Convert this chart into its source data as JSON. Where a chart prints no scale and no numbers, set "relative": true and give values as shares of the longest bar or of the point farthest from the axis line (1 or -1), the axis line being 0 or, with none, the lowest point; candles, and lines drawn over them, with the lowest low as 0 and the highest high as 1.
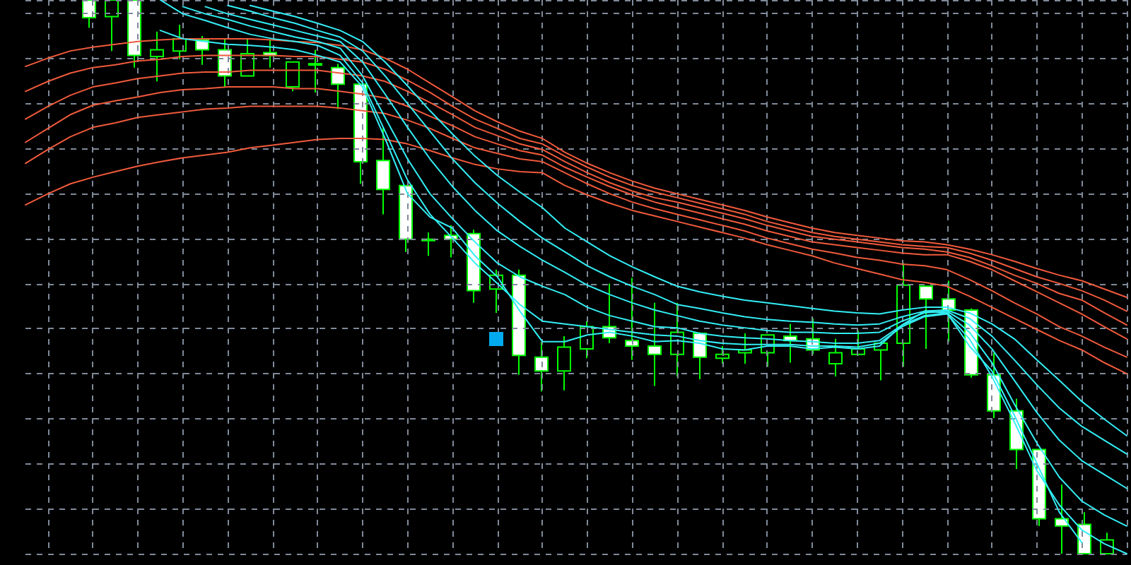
{
  "chart_data": [
    {
      "type": "candlestick",
      "relative": true,
      "color": "#00ff00",
      "categories": [
        null,
        null,
        null,
        null,
        null,
        null,
        null,
        null,
        null,
        null,
        null,
        null,
        null,
        null,
        null,
        null,
        null,
        null,
        null,
        null,
        null,
        null,
        null,
        null,
        null,
        null,
        null,
        null,
        null,
        null,
        null,
        null,
        null,
        null,
        null,
        null,
        null,
        null,
        null,
        null,
        null,
        null,
        null,
        null,
        null,
        null
      ],
      "ohlc": [
        [
          1,
          1,
          0.95,
          0.968
        ],
        [
          0.97,
          1,
          0.908,
          1
        ],
        [
          1,
          1,
          0.878,
          0.9
        ],
        [
          0.898,
          0.943,
          0.853,
          0.91
        ],
        [
          0.908,
          0.955,
          0.893,
          0.93
        ],
        [
          0.928,
          0.935,
          0.883,
          0.91
        ],
        [
          0.91,
          0.93,
          0.843,
          0.863
        ],
        [
          0.863,
          0.93,
          0.863,
          0.903
        ],
        [
          0.905,
          0.928,
          0.878,
          0.9
        ],
        [
          0.843,
          0.888,
          0.835,
          0.888
        ],
        [
          0.885,
          0.91,
          0.833,
          0.883
        ],
        [
          0.878,
          0.885,
          0.803,
          0.848
        ],
        [
          0.848,
          0.848,
          0.668,
          0.708
        ],
        [
          0.71,
          0.77,
          0.613,
          0.658
        ],
        [
          0.665,
          0.665,
          0.545,
          0.568
        ],
        [
          0.568,
          0.58,
          0.538,
          0.568
        ],
        [
          0.575,
          0.593,
          0.535,
          0.568
        ],
        [
          0.578,
          0.585,
          0.453,
          0.475
        ],
        [
          0.478,
          0.513,
          0.435,
          0.503
        ],
        [
          0.503,
          0.513,
          0.323,
          0.358
        ],
        [
          0.355,
          0.383,
          0.293,
          0.33
        ],
        [
          0.33,
          0.393,
          0.295,
          0.373
        ],
        [
          0.37,
          0.42,
          0.353,
          0.41
        ],
        [
          0.41,
          0.488,
          0.38,
          0.39
        ],
        [
          0.385,
          0.498,
          0.35,
          0.375
        ],
        [
          0.375,
          0.453,
          0.303,
          0.36
        ],
        [
          0.36,
          0.453,
          0.32,
          0.4
        ],
        [
          0.398,
          0.4,
          0.315,
          0.355
        ],
        [
          0.353,
          0.375,
          0.343,
          0.36
        ],
        [
          0.363,
          0.398,
          0.343,
          0.368
        ],
        [
          0.363,
          0.395,
          0.338,
          0.395
        ],
        [
          0.393,
          0.415,
          0.345,
          0.385
        ],
        [
          0.388,
          0.425,
          0.36,
          0.368
        ],
        [
          0.343,
          0.388,
          0.32,
          0.363
        ],
        [
          0.36,
          0.403,
          0.358,
          0.37
        ],
        [
          0.368,
          0.38,
          0.313,
          0.38
        ],
        [
          0.38,
          0.525,
          0.338,
          0.485
        ],
        [
          0.483,
          0.483,
          0.37,
          0.46
        ],
        [
          0.46,
          0.493,
          0.383,
          0.44
        ],
        [
          0.44,
          0.443,
          0.318,
          0.323
        ],
        [
          0.323,
          0.363,
          0.245,
          0.258
        ],
        [
          0.258,
          0.28,
          0.153,
          0.188
        ],
        [
          0.188,
          0.188,
          0.05,
          0.063
        ],
        [
          0.063,
          0.125,
          0,
          0.05
        ],
        [
          0.053,
          0.075,
          0,
          0
        ],
        [
          0,
          0.038,
          0,
          0.025
        ]
      ]
    },
    {
      "type": "line",
      "relative": true,
      "grid": true,
      "marker": "none",
      "line_style": "solid",
      "categories": [
        null,
        null,
        null,
        null,
        null,
        null,
        null,
        null,
        null,
        null,
        null,
        null,
        null,
        null,
        null,
        null,
        null,
        null,
        null,
        null,
        null,
        null,
        null,
        null,
        null,
        null,
        null,
        null,
        null,
        null,
        null,
        null,
        null,
        null,
        null,
        null,
        null,
        null,
        null,
        null,
        null,
        null,
        null,
        null,
        null,
        null,
        null,
        null,
        null,
        null
      ],
      "series": [
        {
          "color": "#f05a3c",
          "values": [
            0.88,
            0.895,
            0.908,
            0.915,
            0.92,
            0.925,
            0.928,
            0.93,
            0.93,
            0.93,
            0.93,
            0.928,
            0.925,
            0.923,
            0.918,
            0.91,
            0.895,
            0.875,
            0.85,
            0.825,
            0.8,
            0.78,
            0.763,
            0.75,
            0.725,
            0.705,
            0.688,
            0.673,
            0.66,
            0.65,
            0.64,
            0.63,
            0.62,
            0.608,
            0.598,
            0.588,
            0.58,
            0.575,
            0.57,
            0.565,
            0.563,
            0.558,
            0.55,
            0.54,
            0.528,
            0.515,
            0.503,
            0.493,
            0.478,
            0.463
          ]
        },
        {
          "color": "#f05a3c",
          "values": [
            0.835,
            0.853,
            0.868,
            0.878,
            0.883,
            0.89,
            0.893,
            0.898,
            0.9,
            0.9,
            0.9,
            0.9,
            0.898,
            0.898,
            0.893,
            0.888,
            0.875,
            0.855,
            0.833,
            0.808,
            0.785,
            0.768,
            0.75,
            0.74,
            0.718,
            0.698,
            0.68,
            0.665,
            0.653,
            0.643,
            0.633,
            0.623,
            0.613,
            0.6,
            0.59,
            0.58,
            0.573,
            0.568,
            0.563,
            0.558,
            0.555,
            0.553,
            0.543,
            0.53,
            0.515,
            0.5,
            0.488,
            0.475,
            0.458,
            0.438
          ]
        },
        {
          "color": "#f05a3c",
          "values": [
            0.785,
            0.808,
            0.828,
            0.843,
            0.85,
            0.858,
            0.863,
            0.868,
            0.87,
            0.87,
            0.873,
            0.873,
            0.873,
            0.873,
            0.868,
            0.863,
            0.853,
            0.835,
            0.815,
            0.793,
            0.77,
            0.755,
            0.74,
            0.73,
            0.708,
            0.688,
            0.67,
            0.655,
            0.643,
            0.635,
            0.625,
            0.615,
            0.605,
            0.593,
            0.583,
            0.573,
            0.568,
            0.563,
            0.558,
            0.553,
            0.55,
            0.545,
            0.535,
            0.52,
            0.503,
            0.488,
            0.47,
            0.458,
            0.435,
            0.413
          ]
        },
        {
          "color": "#f05a3c",
          "values": [
            0.743,
            0.768,
            0.793,
            0.81,
            0.818,
            0.825,
            0.833,
            0.838,
            0.84,
            0.843,
            0.843,
            0.843,
            0.84,
            0.84,
            0.835,
            0.83,
            0.823,
            0.808,
            0.79,
            0.773,
            0.753,
            0.74,
            0.728,
            0.72,
            0.698,
            0.68,
            0.663,
            0.648,
            0.635,
            0.625,
            0.615,
            0.605,
            0.595,
            0.583,
            0.573,
            0.563,
            0.558,
            0.553,
            0.548,
            0.543,
            0.54,
            0.54,
            0.528,
            0.513,
            0.493,
            0.473,
            0.453,
            0.433,
            0.41,
            0.388
          ]
        },
        {
          "color": "#f05a3c",
          "values": [
            0.705,
            0.73,
            0.753,
            0.77,
            0.778,
            0.788,
            0.793,
            0.798,
            0.803,
            0.805,
            0.808,
            0.808,
            0.808,
            0.808,
            0.805,
            0.8,
            0.795,
            0.783,
            0.768,
            0.75,
            0.733,
            0.723,
            0.713,
            0.708,
            0.688,
            0.668,
            0.65,
            0.635,
            0.623,
            0.613,
            0.603,
            0.593,
            0.583,
            0.57,
            0.56,
            0.55,
            0.543,
            0.535,
            0.53,
            0.523,
            0.52,
            0.513,
            0.495,
            0.475,
            0.453,
            0.433,
            0.41,
            0.393,
            0.373,
            0.355
          ]
        },
        {
          "color": "#f05a3c",
          "values": [
            0.63,
            0.65,
            0.668,
            0.68,
            0.69,
            0.7,
            0.708,
            0.715,
            0.72,
            0.725,
            0.733,
            0.738,
            0.743,
            0.748,
            0.75,
            0.75,
            0.748,
            0.74,
            0.728,
            0.715,
            0.703,
            0.695,
            0.69,
            0.688,
            0.665,
            0.648,
            0.633,
            0.62,
            0.61,
            0.6,
            0.59,
            0.58,
            0.57,
            0.558,
            0.548,
            0.538,
            0.525,
            0.515,
            0.505,
            0.495,
            0.49,
            0.483,
            0.465,
            0.445,
            0.425,
            0.405,
            0.385,
            0.368,
            0.345,
            0.325
          ]
        },
        {
          "color": "#33eef5",
          "values": [
            null,
            null,
            null,
            null,
            null,
            null,
            0.945,
            0.93,
            0.925,
            0.92,
            0.918,
            0.915,
            0.91,
            0.9,
            0.888,
            0.843,
            0.75,
            0.65,
            0.608,
            0.588,
            0.538,
            0.5,
            0.438,
            0.383,
            0.383,
            0.395,
            0.4,
            0.393,
            0.383,
            0.385,
            0.38,
            0.37,
            0.368,
            0.375,
            0.375,
            0.37,
            0.373,
            0.37,
            0.375,
            0.413,
            0.438,
            0.435,
            0.375,
            0.33,
            0.25,
            0.163,
            0.075,
            0.02,
            null,
            null
          ]
        },
        {
          "color": "#33eef5",
          "values": [
            null,
            null,
            null,
            null,
            null,
            null,
            1,
            0.975,
            0.963,
            0.95,
            0.938,
            0.93,
            0.925,
            0.918,
            0.9,
            0.85,
            0.763,
            0.675,
            0.613,
            0.57,
            0.525,
            0.488,
            0.45,
            0.42,
            0.415,
            0.41,
            0.405,
            0.4,
            0.395,
            0.393,
            0.385,
            0.38,
            0.378,
            0.378,
            0.378,
            0.375,
            0.375,
            0.373,
            0.38,
            0.41,
            0.428,
            0.433,
            0.388,
            0.32,
            0.238,
            0.15,
            0.088,
            0.043,
            0.018,
            0
          ]
        },
        {
          "color": "#33eef5",
          "values": [
            null,
            null,
            null,
            null,
            null,
            null,
            null,
            0.988,
            0.975,
            0.965,
            0.953,
            0.943,
            0.933,
            0.925,
            0.913,
            0.863,
            0.788,
            0.713,
            0.65,
            0.605,
            0.563,
            0.525,
            0.5,
            0.483,
            0.468,
            0.445,
            0.43,
            0.42,
            0.41,
            0.408,
            0.398,
            0.393,
            0.39,
            0.388,
            0.385,
            0.383,
            0.38,
            0.38,
            0.385,
            0.413,
            0.43,
            0.435,
            0.4,
            0.345,
            0.27,
            0.2,
            0.138,
            0.095,
            0.07,
            0.05
          ]
        },
        {
          "color": "#33eef5",
          "values": [
            null,
            null,
            null,
            null,
            null,
            null,
            null,
            null,
            0.988,
            0.975,
            0.965,
            0.955,
            0.945,
            0.935,
            0.925,
            0.888,
            0.83,
            0.77,
            0.713,
            0.663,
            0.62,
            0.583,
            0.555,
            0.53,
            0.508,
            0.485,
            0.468,
            0.453,
            0.44,
            0.43,
            0.42,
            0.413,
            0.408,
            0.403,
            0.4,
            0.4,
            0.398,
            0.398,
            0.4,
            0.42,
            0.435,
            0.438,
            0.413,
            0.37,
            0.313,
            0.255,
            0.205,
            0.168,
            0.143,
            0.118
          ]
        },
        {
          "color": "#33eef5",
          "values": [
            null,
            null,
            null,
            null,
            null,
            null,
            null,
            null,
            null,
            0.99,
            0.98,
            0.968,
            0.958,
            0.945,
            0.933,
            0.908,
            0.863,
            0.813,
            0.763,
            0.713,
            0.67,
            0.633,
            0.6,
            0.57,
            0.545,
            0.52,
            0.5,
            0.483,
            0.468,
            0.45,
            0.443,
            0.435,
            0.428,
            0.423,
            0.42,
            0.418,
            0.415,
            0.413,
            0.415,
            0.428,
            0.438,
            0.44,
            0.425,
            0.393,
            0.35,
            0.305,
            0.263,
            0.23,
            0.205,
            0.18
          ]
        },
        {
          "color": "#33eef5",
          "values": [
            null,
            null,
            null,
            null,
            null,
            null,
            null,
            null,
            null,
            null,
            0.99,
            0.98,
            0.97,
            0.958,
            0.945,
            0.925,
            0.888,
            0.845,
            0.8,
            0.758,
            0.718,
            0.683,
            0.653,
            0.625,
            0.588,
            0.563,
            0.538,
            0.518,
            0.5,
            0.483,
            0.473,
            0.465,
            0.458,
            0.453,
            0.448,
            0.443,
            0.438,
            0.435,
            0.433,
            0.44,
            0.445,
            0.445,
            0.435,
            0.415,
            0.388,
            0.35,
            0.313,
            0.275,
            0.243,
            0.213
          ]
        }
      ]
    }
  ]
}
